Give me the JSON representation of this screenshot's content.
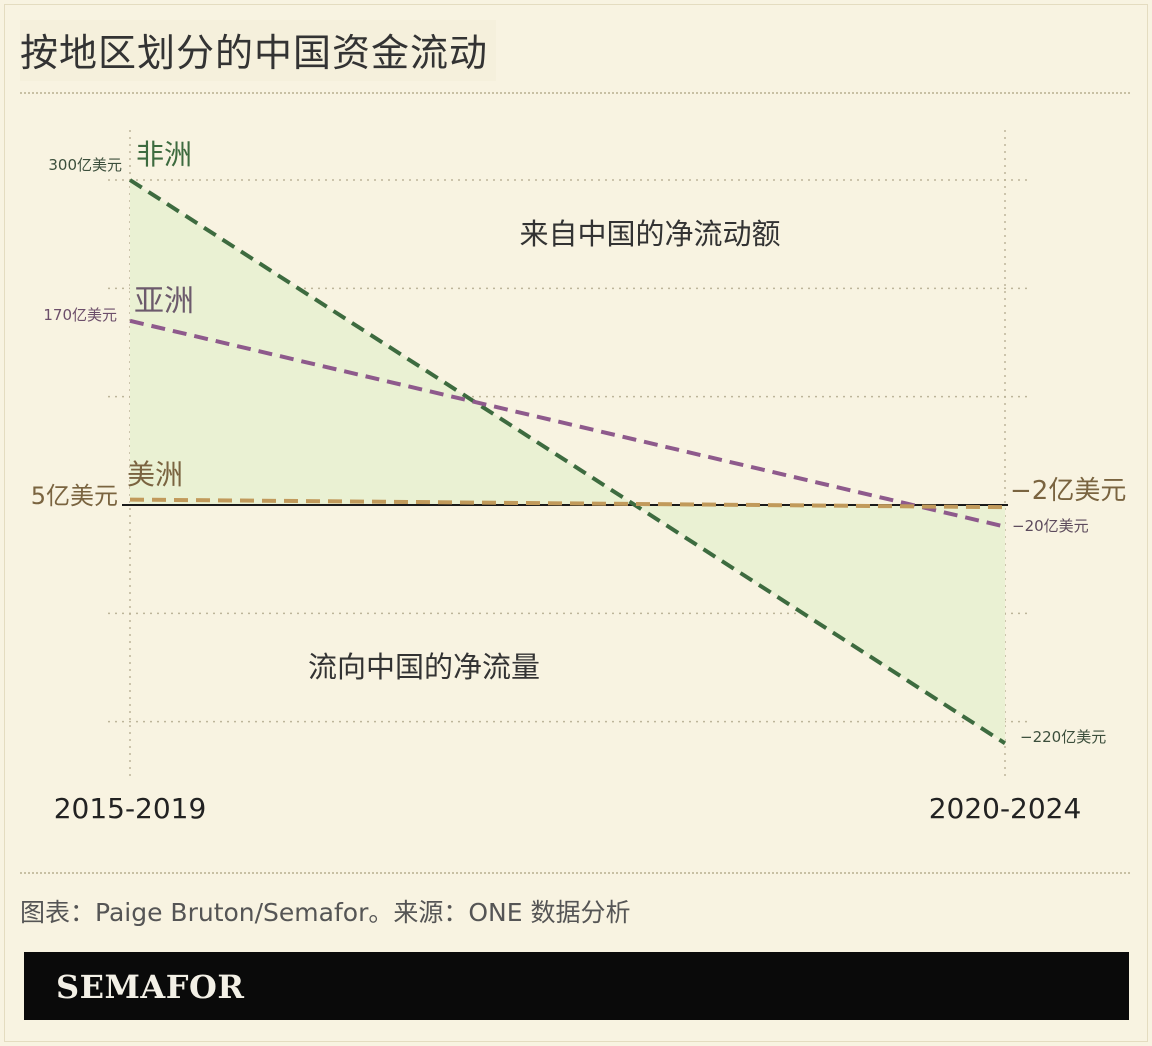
{
  "title": "按地区划分的中国资金流动",
  "source": "图表：Paige Bruton/Semafor。来源：ONE 数据分析",
  "brand": "SEMAFOR",
  "colors": {
    "africa": "#3d6b3f",
    "asia": "#8e5a8c",
    "americas": "#c19a5b",
    "fill": "#eaf1d3",
    "americas_label": "#7a6440"
  },
  "chart_data": {
    "type": "line",
    "categories": [
      "2015-2019",
      "2020-2024"
    ],
    "series": [
      {
        "name": "非洲",
        "values": [
          300,
          -220
        ],
        "start_label": "300亿美元",
        "end_label": "−220亿美元"
      },
      {
        "name": "亚洲",
        "values": [
          170,
          -20
        ],
        "start_label": "170亿美元",
        "end_label": "−20亿美元"
      },
      {
        "name": "美洲",
        "values": [
          5,
          -2
        ],
        "start_label": "5亿美元",
        "end_label": "−2亿美元"
      }
    ],
    "annotations": {
      "above": "来自中国的净流动额",
      "below": "流向中国的净流量"
    },
    "ylim": [
      -250,
      350
    ],
    "grid": true
  }
}
